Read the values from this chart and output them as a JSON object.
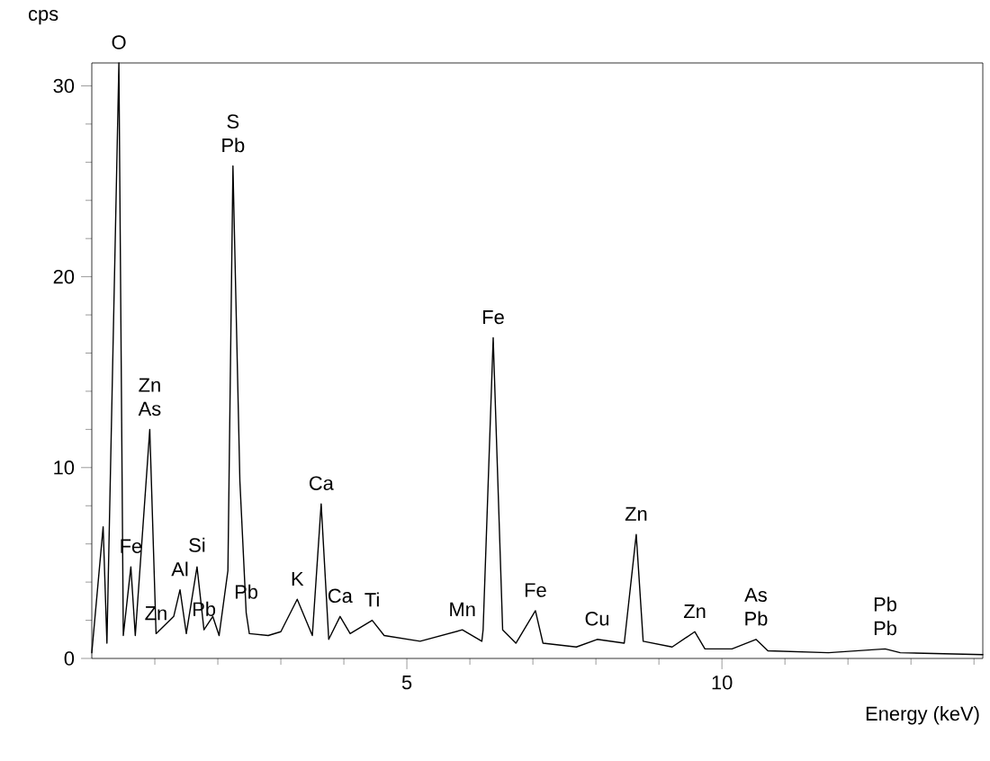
{
  "chart_data": {
    "type": "line",
    "xlabel": "Energy (keV)",
    "ylabel": "cps",
    "x": [
      0,
      0.18,
      0.24,
      0.43,
      0.5,
      0.62,
      0.69,
      0.92,
      1.02,
      1.3,
      1.4,
      1.5,
      1.67,
      1.78,
      1.92,
      2.02,
      2.16,
      2.24,
      2.35,
      2.45,
      2.5,
      2.8,
      3.0,
      3.26,
      3.5,
      3.64,
      3.76,
      3.94,
      4.1,
      4.45,
      4.64,
      5.21,
      5.88,
      6.19,
      6.21,
      6.37,
      6.52,
      6.73,
      7.04,
      7.16,
      7.69,
      8.02,
      8.45,
      8.64,
      8.75,
      9.21,
      9.57,
      9.73,
      10.16,
      10.54,
      10.73,
      11.69,
      12.59,
      12.83,
      14.14
    ],
    "series": [
      {
        "color": "#000000",
        "values": [
          0.3,
          6.9,
          0.8,
          31.2,
          1.2,
          4.8,
          1.2,
          12.0,
          1.3,
          2.2,
          3.6,
          1.3,
          4.8,
          1.5,
          2.2,
          1.2,
          4.6,
          25.8,
          9.3,
          2.4,
          1.3,
          1.2,
          1.4,
          3.1,
          1.2,
          8.1,
          1.0,
          2.2,
          1.3,
          2.0,
          1.2,
          0.9,
          1.5,
          0.9,
          1.5,
          16.8,
          1.5,
          0.8,
          2.5,
          0.8,
          0.6,
          1.0,
          0.8,
          6.5,
          0.9,
          0.6,
          1.4,
          0.5,
          0.5,
          1.0,
          0.4,
          0.3,
          0.5,
          0.3,
          0.2
        ]
      }
    ],
    "xlim": [
      0,
      14.14
    ],
    "ylim": [
      0,
      31.2
    ],
    "xticks": [
      {
        "value": 1,
        "label": null
      },
      {
        "value": 2,
        "label": null
      },
      {
        "value": 3,
        "label": null
      },
      {
        "value": 4,
        "label": null
      },
      5,
      {
        "value": 6,
        "label": null
      },
      {
        "value": 7,
        "label": null
      },
      {
        "value": 8,
        "label": null
      },
      {
        "value": 9,
        "label": null
      },
      10,
      {
        "value": 11,
        "label": null
      },
      {
        "value": 12,
        "label": null
      },
      {
        "value": 13,
        "label": null
      },
      {
        "value": 14,
        "label": null
      }
    ],
    "yticks": [
      0,
      {
        "value": 2,
        "label": null
      },
      {
        "value": 4,
        "label": null
      },
      {
        "value": 6,
        "label": null
      },
      {
        "value": 8,
        "label": null
      },
      10,
      {
        "value": 12,
        "label": null
      },
      {
        "value": 14,
        "label": null
      },
      {
        "value": 16,
        "label": null
      },
      {
        "value": 18,
        "label": null
      },
      20,
      {
        "value": 22,
        "label": null
      },
      {
        "value": 24,
        "label": null
      },
      {
        "value": 26,
        "label": null
      },
      {
        "value": 28,
        "label": null
      },
      30
    ],
    "marker": "none",
    "line_style": "solid",
    "annotations": [
      {
        "text": "O",
        "x": 0.43,
        "y": 31.2
      },
      {
        "text": "S",
        "x": 2.24,
        "y": 25.8
      },
      {
        "text": "Pb",
        "x": 2.24,
        "y": 25.8
      },
      {
        "text": "Fe",
        "x": 6.37,
        "y": 16.8
      },
      {
        "text": "Zn",
        "x": 0.92,
        "y": 12.0
      },
      {
        "text": "Si",
        "x": 1.67,
        "y": 4.8
      },
      {
        "text": "As",
        "x": 0.92,
        "y": 12.0
      },
      {
        "text": "Ca",
        "x": 3.64,
        "y": 8.1
      },
      {
        "text": "Ti",
        "x": 4.45,
        "y": 2.0
      },
      {
        "text": "Fe",
        "x": 0.62,
        "y": 4.8
      },
      {
        "text": "Al",
        "x": 1.4,
        "y": 3.6
      },
      {
        "text": "Zn",
        "x": 1.02,
        "y": 1.3
      },
      {
        "text": "Pb",
        "x": 1.78,
        "y": 1.5
      },
      {
        "text": "Pb",
        "x": 2.45,
        "y": 2.4
      },
      {
        "text": "K",
        "x": 3.26,
        "y": 3.1
      },
      {
        "text": "Ca",
        "x": 3.94,
        "y": 2.2
      },
      {
        "text": "Mn",
        "x": 5.88,
        "y": 1.5
      },
      {
        "text": "Fe",
        "x": 7.04,
        "y": 2.5
      },
      {
        "text": "Cu",
        "x": 8.02,
        "y": 1.0
      },
      {
        "text": "Zn",
        "x": 8.64,
        "y": 6.5
      },
      {
        "text": "Zn",
        "x": 9.57,
        "y": 1.4
      },
      {
        "text": "As",
        "x": 10.54,
        "y": 1.0
      },
      {
        "text": "Pb",
        "x": 10.54,
        "y": 1.0
      },
      {
        "text": "Pb",
        "x": 12.59,
        "y": 0.5
      },
      {
        "text": "Pb",
        "x": 12.59,
        "y": 0.5
      }
    ]
  }
}
